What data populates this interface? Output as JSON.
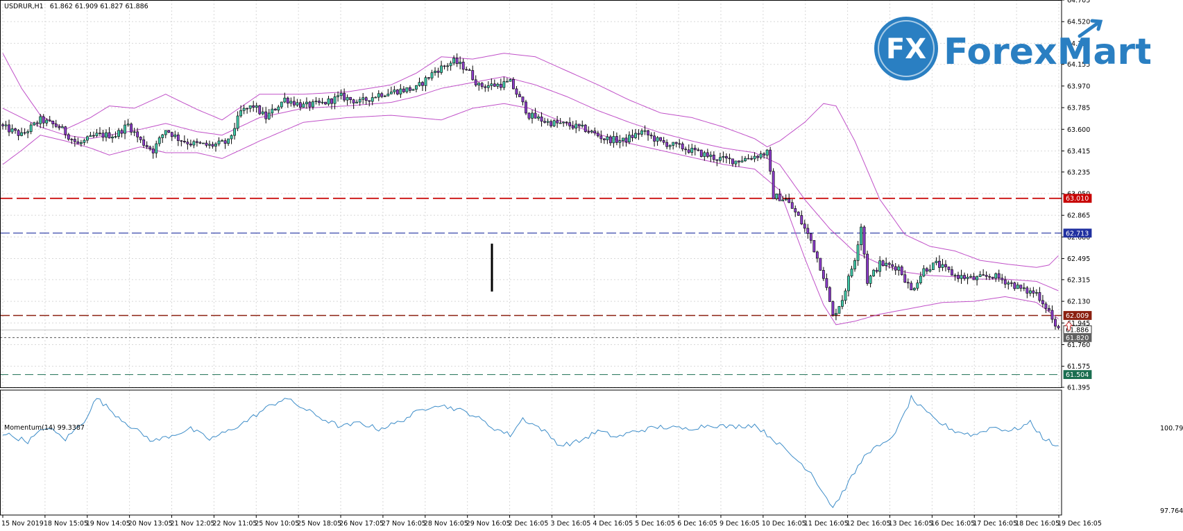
{
  "header": {
    "symbol": "USDRUR,H1",
    "ohlc": "61.862 61.909 61.827 61.886"
  },
  "brand": {
    "mark": "FX",
    "name": "ForexMart",
    "color": "#2a7fc2"
  },
  "indicator": {
    "label": "Momentum(14) 99.3387",
    "scale_top": "100.7914",
    "scale_bottom": "97.7642"
  },
  "colors": {
    "bull": "#40c8a8",
    "bear": "#8b3cc8",
    "bands": "#c050c8",
    "momentum": "#3c8cc8",
    "level_red": "#c80000",
    "level_dark": "#8b2010",
    "level_blue": "#2030a0",
    "level_green": "#1a6e50"
  },
  "chart_data": [
    {
      "type": "candlestick",
      "symbol": "USDRUR",
      "timeframe": "H1",
      "ylim": [
        61.395,
        64.705
      ],
      "price_ticks": [
        "64.705",
        "64.520",
        "64.335",
        "64.155",
        "63.970",
        "63.785",
        "63.600",
        "63.415",
        "63.235",
        "63.050",
        "62.865",
        "62.680",
        "62.495",
        "62.315",
        "62.130",
        "61.945",
        "61.760",
        "61.575",
        "61.395"
      ],
      "time_labels": [
        "15 Nov 2019",
        "18 Nov 15:05",
        "19 Nov 14:05",
        "20 Nov 13:05",
        "21 Nov 12:05",
        "22 Nov 11:05",
        "25 Nov 10:05",
        "25 Nov 18:05",
        "26 Nov 17:05",
        "27 Nov 16:05",
        "28 Nov 16:05",
        "29 Nov 16:05",
        "2 Dec 16:05",
        "3 Dec 16:05",
        "4 Dec 16:05",
        "5 Dec 16:05",
        "6 Dec 16:05",
        "9 Dec 16:05",
        "10 Dec 16:05",
        "11 Dec 16:05",
        "12 Dec 16:05",
        "13 Dec 16:05",
        "16 Dec 16:05",
        "17 Dec 16:05",
        "18 Dec 16:05",
        "19 Dec 16:05"
      ],
      "close_anchors": [
        [
          0,
          63.62
        ],
        [
          6,
          63.55
        ],
        [
          12,
          63.68
        ],
        [
          18,
          63.62
        ],
        [
          24,
          63.47
        ],
        [
          30,
          63.55
        ],
        [
          36,
          63.55
        ],
        [
          40,
          63.64
        ],
        [
          44,
          63.5
        ],
        [
          48,
          63.42
        ],
        [
          52,
          63.6
        ],
        [
          56,
          63.52
        ],
        [
          60,
          63.48
        ],
        [
          66,
          63.46
        ],
        [
          72,
          63.49
        ],
        [
          76,
          63.75
        ],
        [
          80,
          63.8
        ],
        [
          84,
          63.7
        ],
        [
          90,
          63.86
        ],
        [
          96,
          63.8
        ],
        [
          102,
          63.82
        ],
        [
          108,
          63.88
        ],
        [
          114,
          63.83
        ],
        [
          120,
          63.9
        ],
        [
          126,
          63.93
        ],
        [
          132,
          63.95
        ],
        [
          138,
          64.1
        ],
        [
          144,
          64.18
        ],
        [
          148,
          64.12
        ],
        [
          152,
          63.97
        ],
        [
          158,
          63.98
        ],
        [
          162,
          64.0
        ],
        [
          168,
          63.72
        ],
        [
          174,
          63.66
        ],
        [
          180,
          63.64
        ],
        [
          186,
          63.6
        ],
        [
          192,
          63.52
        ],
        [
          198,
          63.5
        ],
        [
          204,
          63.58
        ],
        [
          210,
          63.49
        ],
        [
          216,
          63.45
        ],
        [
          222,
          63.4
        ],
        [
          228,
          63.35
        ],
        [
          234,
          63.33
        ],
        [
          240,
          63.37
        ],
        [
          244,
          63.4
        ],
        [
          246,
          63.03
        ],
        [
          250,
          63.0
        ],
        [
          254,
          62.85
        ],
        [
          258,
          62.65
        ],
        [
          262,
          62.35
        ],
        [
          265,
          62.0
        ],
        [
          268,
          62.15
        ],
        [
          272,
          62.5
        ],
        [
          274,
          62.78
        ],
        [
          276,
          62.3
        ],
        [
          280,
          62.45
        ],
        [
          286,
          62.42
        ],
        [
          290,
          62.22
        ],
        [
          294,
          62.4
        ],
        [
          298,
          62.45
        ],
        [
          304,
          62.35
        ],
        [
          310,
          62.32
        ],
        [
          316,
          62.35
        ],
        [
          322,
          62.28
        ],
        [
          326,
          62.22
        ],
        [
          330,
          62.2
        ],
        [
          334,
          62.05
        ],
        [
          336,
          61.9
        ],
        [
          337,
          61.886
        ]
      ],
      "levels": [
        {
          "value": "63.010",
          "style": "red-dashed"
        },
        {
          "value": "62.713",
          "style": "blue-dashed"
        },
        {
          "value": "62.009",
          "style": "dark-red-dashed"
        },
        {
          "value": "61.886",
          "style": "current-bid"
        },
        {
          "value": "61.820",
          "style": "dotted"
        },
        {
          "value": "61.504",
          "style": "green-dashed"
        }
      ],
      "bollinger": {
        "upper": [
          [
            0,
            64.25
          ],
          [
            6,
            63.95
          ],
          [
            12,
            63.72
          ],
          [
            20,
            63.6
          ],
          [
            28,
            63.7
          ],
          [
            34,
            63.8
          ],
          [
            42,
            63.78
          ],
          [
            52,
            63.9
          ],
          [
            62,
            63.77
          ],
          [
            70,
            63.68
          ],
          [
            82,
            63.9
          ],
          [
            96,
            63.9
          ],
          [
            110,
            63.92
          ],
          [
            124,
            63.98
          ],
          [
            132,
            64.08
          ],
          [
            140,
            64.22
          ],
          [
            150,
            64.2
          ],
          [
            160,
            64.25
          ],
          [
            170,
            64.22
          ],
          [
            180,
            64.1
          ],
          [
            190,
            63.98
          ],
          [
            200,
            63.85
          ],
          [
            210,
            63.74
          ],
          [
            220,
            63.7
          ],
          [
            230,
            63.62
          ],
          [
            240,
            63.52
          ],
          [
            244,
            63.45
          ],
          [
            248,
            63.5
          ],
          [
            256,
            63.66
          ],
          [
            262,
            63.82
          ],
          [
            266,
            63.8
          ],
          [
            272,
            63.5
          ],
          [
            280,
            63.0
          ],
          [
            288,
            62.7
          ],
          [
            296,
            62.6
          ],
          [
            304,
            62.56
          ],
          [
            312,
            62.48
          ],
          [
            320,
            62.45
          ],
          [
            330,
            62.42
          ],
          [
            334,
            62.44
          ],
          [
            337,
            62.52
          ]
        ],
        "middle": [
          [
            0,
            63.78
          ],
          [
            6,
            63.7
          ],
          [
            12,
            63.62
          ],
          [
            20,
            63.55
          ],
          [
            28,
            63.52
          ],
          [
            34,
            63.55
          ],
          [
            44,
            63.6
          ],
          [
            52,
            63.65
          ],
          [
            62,
            63.58
          ],
          [
            70,
            63.55
          ],
          [
            82,
            63.7
          ],
          [
            96,
            63.78
          ],
          [
            110,
            63.8
          ],
          [
            124,
            63.83
          ],
          [
            132,
            63.88
          ],
          [
            140,
            63.95
          ],
          [
            150,
            64.0
          ],
          [
            160,
            64.05
          ],
          [
            170,
            63.98
          ],
          [
            180,
            63.88
          ],
          [
            190,
            63.76
          ],
          [
            200,
            63.66
          ],
          [
            210,
            63.57
          ],
          [
            220,
            63.5
          ],
          [
            230,
            63.44
          ],
          [
            240,
            63.4
          ],
          [
            248,
            63.3
          ],
          [
            256,
            63.0
          ],
          [
            264,
            62.75
          ],
          [
            272,
            62.55
          ],
          [
            280,
            62.45
          ],
          [
            288,
            62.38
          ],
          [
            296,
            62.35
          ],
          [
            304,
            62.34
          ],
          [
            312,
            62.32
          ],
          [
            320,
            62.32
          ],
          [
            330,
            62.3
          ],
          [
            337,
            62.22
          ]
        ],
        "lower": [
          [
            0,
            63.3
          ],
          [
            6,
            63.42
          ],
          [
            12,
            63.55
          ],
          [
            20,
            63.5
          ],
          [
            28,
            63.44
          ],
          [
            34,
            63.38
          ],
          [
            44,
            63.45
          ],
          [
            52,
            63.4
          ],
          [
            62,
            63.4
          ],
          [
            70,
            63.35
          ],
          [
            82,
            63.5
          ],
          [
            96,
            63.66
          ],
          [
            110,
            63.7
          ],
          [
            124,
            63.72
          ],
          [
            132,
            63.7
          ],
          [
            140,
            63.68
          ],
          [
            150,
            63.78
          ],
          [
            160,
            63.82
          ],
          [
            168,
            63.78
          ],
          [
            180,
            63.65
          ],
          [
            190,
            63.56
          ],
          [
            200,
            63.48
          ],
          [
            210,
            63.42
          ],
          [
            220,
            63.36
          ],
          [
            230,
            63.3
          ],
          [
            240,
            63.26
          ],
          [
            248,
            63.08
          ],
          [
            256,
            62.5
          ],
          [
            262,
            62.1
          ],
          [
            266,
            61.93
          ],
          [
            272,
            61.96
          ],
          [
            280,
            62.02
          ],
          [
            290,
            62.07
          ],
          [
            300,
            62.12
          ],
          [
            310,
            62.13
          ],
          [
            320,
            62.17
          ],
          [
            330,
            62.12
          ],
          [
            337,
            61.98
          ]
        ]
      }
    },
    {
      "type": "line",
      "name": "Momentum(14)",
      "ylim": [
        97.7642,
        100.7914
      ],
      "current": 99.3387,
      "anchors": [
        [
          0,
          99.75
        ],
        [
          8,
          99.55
        ],
        [
          14,
          99.9
        ],
        [
          20,
          99.6
        ],
        [
          26,
          100.05
        ],
        [
          30,
          100.6
        ],
        [
          36,
          100.2
        ],
        [
          42,
          99.85
        ],
        [
          48,
          99.55
        ],
        [
          54,
          99.7
        ],
        [
          60,
          99.85
        ],
        [
          66,
          99.6
        ],
        [
          72,
          99.8
        ],
        [
          78,
          100.05
        ],
        [
          84,
          100.35
        ],
        [
          90,
          100.6
        ],
        [
          96,
          100.35
        ],
        [
          102,
          100.1
        ],
        [
          108,
          99.9
        ],
        [
          114,
          100.0
        ],
        [
          120,
          99.85
        ],
        [
          126,
          100.0
        ],
        [
          132,
          100.25
        ],
        [
          138,
          100.45
        ],
        [
          144,
          100.35
        ],
        [
          150,
          100.2
        ],
        [
          156,
          99.9
        ],
        [
          162,
          99.7
        ],
        [
          166,
          100.1
        ],
        [
          172,
          99.85
        ],
        [
          178,
          99.45
        ],
        [
          184,
          99.55
        ],
        [
          190,
          99.8
        ],
        [
          196,
          99.65
        ],
        [
          202,
          99.8
        ],
        [
          210,
          99.9
        ],
        [
          218,
          99.85
        ],
        [
          226,
          99.95
        ],
        [
          232,
          99.9
        ],
        [
          240,
          99.95
        ],
        [
          246,
          99.6
        ],
        [
          252,
          99.2
        ],
        [
          258,
          98.8
        ],
        [
          262,
          98.3
        ],
        [
          265,
          97.95
        ],
        [
          268,
          98.3
        ],
        [
          272,
          98.8
        ],
        [
          276,
          99.3
        ],
        [
          282,
          99.5
        ],
        [
          286,
          99.9
        ],
        [
          290,
          100.6
        ],
        [
          294,
          100.3
        ],
        [
          298,
          100.05
        ],
        [
          304,
          99.8
        ],
        [
          310,
          99.7
        ],
        [
          316,
          99.9
        ],
        [
          322,
          99.8
        ],
        [
          328,
          100.0
        ],
        [
          332,
          99.65
        ],
        [
          334,
          99.55
        ],
        [
          337,
          99.4
        ]
      ]
    }
  ]
}
